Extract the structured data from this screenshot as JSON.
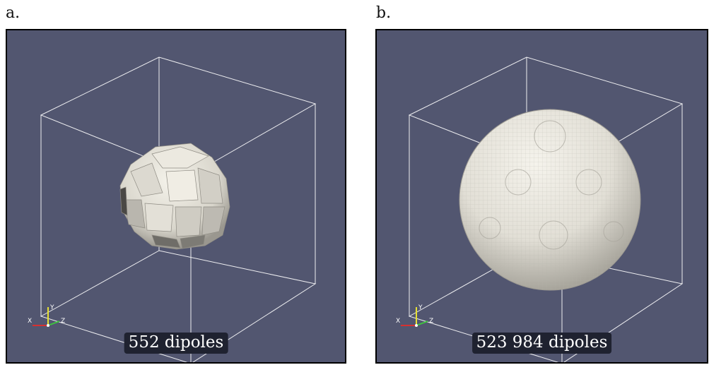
{
  "panels": [
    {
      "letter": "a.",
      "caption": "552 dipoles"
    },
    {
      "letter": "b.",
      "caption": "523 984 dipoles"
    }
  ],
  "axes": {
    "x": "X",
    "y": "Y",
    "z": "Z"
  },
  "colors": {
    "viewport_background": "#525670",
    "bounding_box": "#ffffff",
    "sphere": "#e8e6dc",
    "x_axis": "#d63030",
    "y_axis": "#e6e033",
    "z_axis": "#3ec63e"
  },
  "icons": [
    "coarse-voxel-sphere",
    "fine-voxel-sphere",
    "orientation-axes-icon"
  ]
}
